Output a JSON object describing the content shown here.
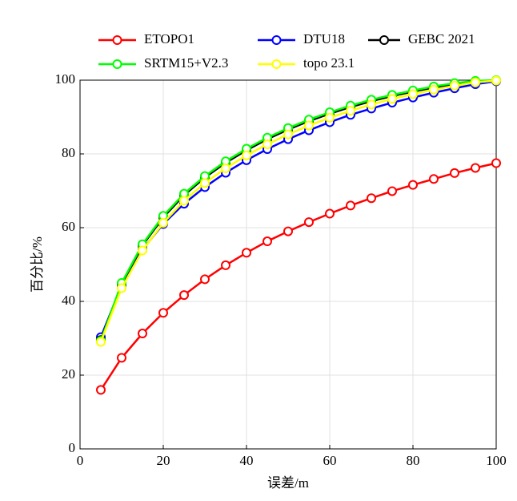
{
  "chart_data": {
    "type": "line",
    "xlabel": "误差/m",
    "ylabel": "百分比/%",
    "x": [
      5,
      10,
      15,
      20,
      25,
      30,
      35,
      40,
      45,
      50,
      55,
      60,
      65,
      70,
      75,
      80,
      85,
      90,
      95,
      100
    ],
    "series": [
      {
        "name": "ETOPO1",
        "color": "#ff0000",
        "values": [
          16,
          24.7,
          31.3,
          36.9,
          41.7,
          46,
          49.8,
          53.2,
          56.3,
          59,
          61.5,
          63.8,
          66,
          68,
          69.9,
          71.6,
          73.2,
          74.8,
          76.2,
          77.5
        ]
      },
      {
        "name": "DTU18",
        "color": "#0000ff",
        "values": [
          30.3,
          44.3,
          54,
          61,
          66.5,
          71,
          74.9,
          78.3,
          81.3,
          84,
          86.4,
          88.6,
          90.6,
          92.3,
          93.9,
          95.3,
          96.6,
          97.8,
          98.9,
          99.7
        ]
      },
      {
        "name": "GEBC 2021",
        "color": "#000000",
        "values": [
          29.5,
          44.8,
          55.2,
          62.8,
          68.8,
          73.6,
          77.6,
          81,
          84,
          86.6,
          88.9,
          90.9,
          92.7,
          94.3,
          95.7,
          96.9,
          98,
          98.9,
          99.5,
          99.9
        ]
      },
      {
        "name": "SRTM15+V2.3",
        "color": "#00ff00",
        "values": [
          29.3,
          45,
          55.5,
          63.2,
          69.2,
          74,
          78,
          81.4,
          84.4,
          87,
          89.3,
          91.3,
          93.1,
          94.7,
          96,
          97.2,
          98.3,
          99.2,
          99.8,
          100
        ]
      },
      {
        "name": "topo 23.1",
        "color": "#ffff00",
        "values": [
          29,
          43.6,
          53.8,
          61.3,
          67.3,
          72.1,
          76.1,
          79.6,
          82.6,
          85.3,
          87.7,
          89.8,
          91.7,
          93.4,
          94.9,
          96.2,
          97.4,
          98.5,
          99.4,
          99.9
        ]
      }
    ],
    "xlim": [
      0,
      100
    ],
    "ylim": [
      0,
      100
    ],
    "xticks": [
      0,
      20,
      40,
      60,
      80,
      100
    ],
    "yticks": [
      0,
      20,
      40,
      60,
      80,
      100
    ],
    "grid": true,
    "legend": "top"
  }
}
